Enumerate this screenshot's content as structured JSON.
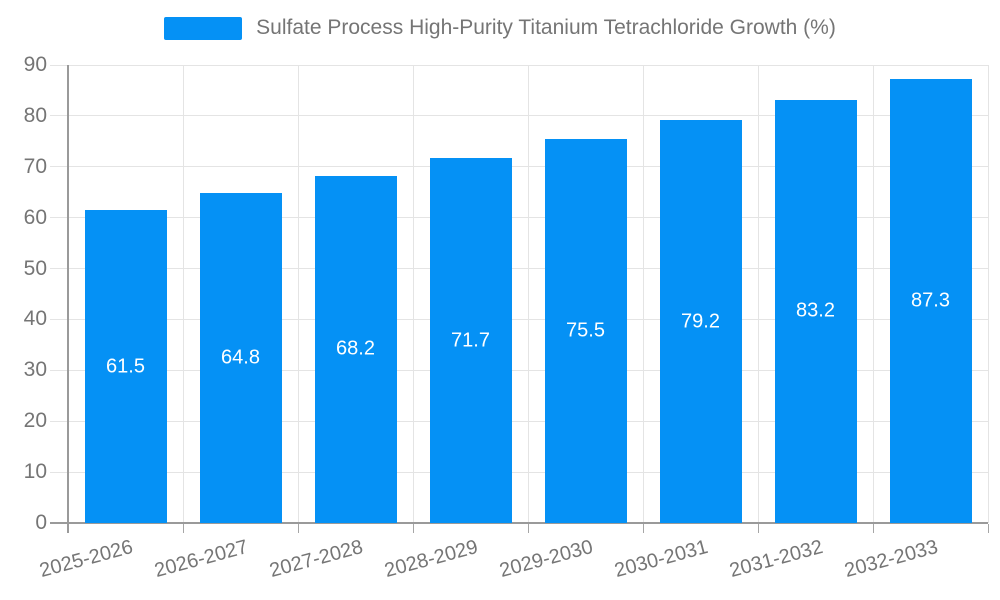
{
  "chart_data": {
    "type": "bar",
    "title": "",
    "legend": "Sulfate Process High-Purity Titanium Tetrachloride Growth (%)",
    "legend_position": "top",
    "categories": [
      "2025-2026",
      "2026-2027",
      "2027-2028",
      "2028-2029",
      "2029-2030",
      "2030-2031",
      "2031-2032",
      "2032-2033"
    ],
    "series": [
      {
        "name": "Sulfate Process High-Purity Titanium Tetrachloride Growth (%)",
        "values": [
          61.5,
          64.8,
          68.2,
          71.7,
          75.5,
          79.2,
          83.2,
          87.3
        ]
      }
    ],
    "value_labels": [
      "61.5",
      "64.8",
      "68.2",
      "71.7",
      "75.5",
      "79.2",
      "83.2",
      "87.3"
    ],
    "xlabel": "",
    "ylabel": "",
    "ylim": [
      0,
      90
    ],
    "yticks": [
      0,
      10,
      20,
      30,
      40,
      50,
      60,
      70,
      80,
      90
    ],
    "grid": true,
    "colors": {
      "bar": "#0591f5",
      "gridline": "#e4e4e4",
      "axis": "#9a9a9a",
      "tick": "#a6a6a6",
      "tick_text": "#757575",
      "bar_label_text": "#ffffff",
      "background": "#ffffff"
    }
  }
}
